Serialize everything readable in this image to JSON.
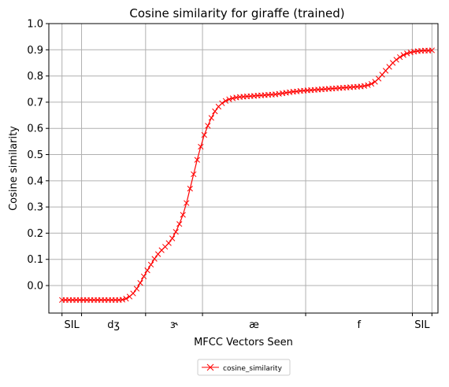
{
  "chart_data": {
    "type": "line",
    "title": "Cosine similarity for giraffe (trained)",
    "xlabel": "MFCC Vectors Seen",
    "ylabel": "Cosine similarity",
    "xlim": [
      -3.7,
      105.7
    ],
    "ylim": [
      -0.105,
      1.0
    ],
    "yticks": [
      0.0,
      0.1,
      0.2,
      0.3,
      0.4,
      0.5,
      0.6,
      0.7,
      0.8,
      0.9,
      1.0
    ],
    "ytick_labels": [
      "0.0",
      "0.1",
      "0.2",
      "0.3",
      "0.4",
      "0.5",
      "0.6",
      "0.7",
      "0.8",
      "0.9",
      "1.0"
    ],
    "xgrid_lines": [
      0,
      5.5,
      23.5,
      39.5,
      68.5,
      98.5,
      104
    ],
    "phone_labels": [
      {
        "text": "SIL",
        "x": 2.75
      },
      {
        "text": "dʒ",
        "x": 14.5
      },
      {
        "text": "ɝ",
        "x": 31.5
      },
      {
        "text": "æ",
        "x": 54
      },
      {
        "text": "f",
        "x": 83.5
      },
      {
        "text": "SIL",
        "x": 101.25
      }
    ],
    "grid": true,
    "legend": {
      "position": "below",
      "entries": [
        "cosine_similarity"
      ]
    },
    "series": [
      {
        "name": "cosine_similarity",
        "color": "#ff0000",
        "marker": "x",
        "x": [
          0,
          1,
          2,
          3,
          4,
          5,
          6,
          7,
          8,
          9,
          10,
          11,
          12,
          13,
          14,
          15,
          16,
          17,
          18,
          19,
          20,
          21,
          22,
          23,
          24,
          25,
          26,
          27,
          28,
          29,
          30,
          31,
          32,
          33,
          34,
          35,
          36,
          37,
          38,
          39,
          40,
          41,
          42,
          43,
          44,
          45,
          46,
          47,
          48,
          49,
          50,
          51,
          52,
          53,
          54,
          55,
          56,
          57,
          58,
          59,
          60,
          61,
          62,
          63,
          64,
          65,
          66,
          67,
          68,
          69,
          70,
          71,
          72,
          73,
          74,
          75,
          76,
          77,
          78,
          79,
          80,
          81,
          82,
          83,
          84,
          85,
          86,
          87,
          88,
          89,
          90,
          91,
          92,
          93,
          94,
          95,
          96,
          97,
          98,
          99,
          100,
          101,
          102,
          103,
          104
        ],
        "y": [
          -0.055,
          -0.055,
          -0.055,
          -0.055,
          -0.055,
          -0.055,
          -0.055,
          -0.055,
          -0.055,
          -0.055,
          -0.055,
          -0.055,
          -0.055,
          -0.055,
          -0.055,
          -0.055,
          -0.055,
          -0.054,
          -0.05,
          -0.042,
          -0.03,
          -0.012,
          0.01,
          0.035,
          0.058,
          0.08,
          0.102,
          0.12,
          0.135,
          0.148,
          0.162,
          0.18,
          0.205,
          0.235,
          0.27,
          0.315,
          0.37,
          0.425,
          0.48,
          0.53,
          0.575,
          0.61,
          0.64,
          0.665,
          0.683,
          0.696,
          0.705,
          0.711,
          0.715,
          0.718,
          0.72,
          0.721,
          0.722,
          0.723,
          0.724,
          0.725,
          0.726,
          0.727,
          0.728,
          0.729,
          0.73,
          0.732,
          0.734,
          0.736,
          0.738,
          0.74,
          0.741,
          0.743,
          0.744,
          0.745,
          0.746,
          0.747,
          0.748,
          0.749,
          0.75,
          0.751,
          0.752,
          0.753,
          0.754,
          0.755,
          0.756,
          0.757,
          0.758,
          0.759,
          0.76,
          0.762,
          0.765,
          0.77,
          0.778,
          0.79,
          0.805,
          0.82,
          0.835,
          0.85,
          0.862,
          0.872,
          0.88,
          0.886,
          0.89,
          0.893,
          0.895,
          0.896,
          0.897,
          0.897,
          0.898
        ]
      }
    ]
  }
}
